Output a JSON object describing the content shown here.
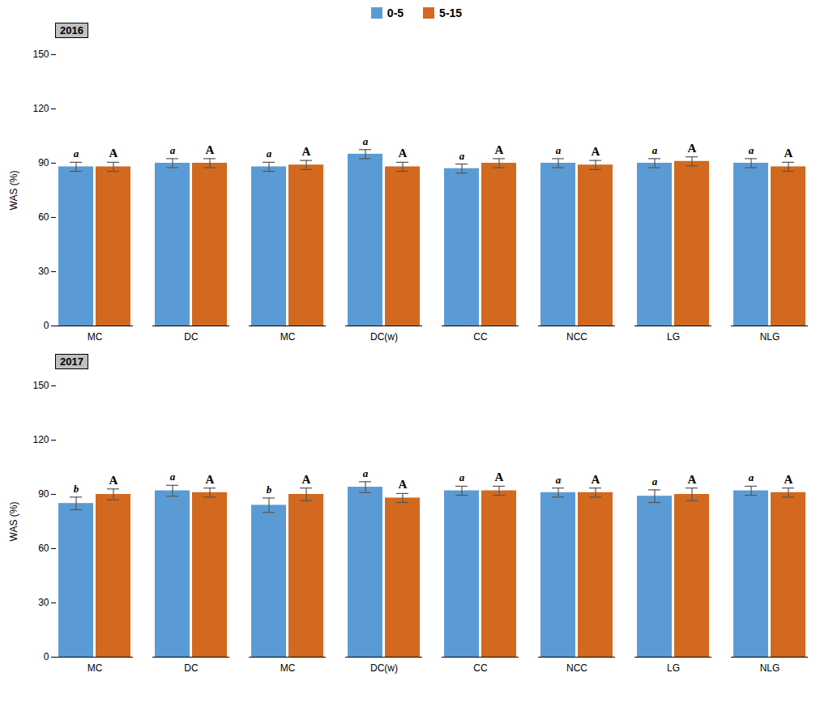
{
  "chart_data": [
    {
      "type": "bar",
      "title": "2016",
      "categories": [
        "MC",
        "DC",
        "MC",
        "DC(w)",
        "CC",
        "NCC",
        "LG",
        "NLG"
      ],
      "series": [
        {
          "name": "0-5",
          "color": "#5B9BD5",
          "values": [
            88,
            90,
            88,
            95,
            87,
            90,
            90,
            90
          ],
          "errors": [
            2.5,
            2.5,
            2.5,
            2.5,
            2.5,
            2.5,
            2.5,
            2.5
          ],
          "letters": [
            "a",
            "a",
            "a",
            "a",
            "a",
            "a",
            "a",
            "a"
          ]
        },
        {
          "name": "5-15",
          "color": "#D2691E",
          "values": [
            88,
            90,
            89,
            88,
            90,
            89,
            91,
            88
          ],
          "errors": [
            2.5,
            2.5,
            2.5,
            2.5,
            2.5,
            2.5,
            2.5,
            2.5
          ],
          "letters": [
            "A",
            "A",
            "A",
            "A",
            "A",
            "A",
            "A",
            "A"
          ]
        }
      ],
      "ylabel": "WAS (%)",
      "ylim": [
        0,
        150
      ],
      "yticks": [
        0,
        30,
        60,
        90,
        120,
        150
      ],
      "grid": false,
      "legend": "top"
    },
    {
      "type": "bar",
      "title": "2017",
      "categories": [
        "MC",
        "DC",
        "MC",
        "DC(w)",
        "CC",
        "NCC",
        "LG",
        "NLG"
      ],
      "series": [
        {
          "name": "0-5",
          "color": "#5B9BD5",
          "values": [
            85,
            92,
            84,
            94,
            92,
            91,
            89,
            92
          ],
          "errors": [
            3.5,
            3.0,
            4.0,
            3.0,
            2.5,
            2.5,
            3.5,
            2.5
          ],
          "letters": [
            "b",
            "a",
            "b",
            "a",
            "a",
            "a",
            "a",
            "a"
          ]
        },
        {
          "name": "5-15",
          "color": "#D2691E",
          "values": [
            90,
            91,
            90,
            88,
            92,
            91,
            90,
            91
          ],
          "errors": [
            3.0,
            2.5,
            3.5,
            2.5,
            2.5,
            2.5,
            3.5,
            2.5
          ],
          "letters": [
            "A",
            "A",
            "A",
            "A",
            "A",
            "A",
            "A",
            "A"
          ]
        }
      ],
      "ylabel": "WAS (%)",
      "ylim": [
        0,
        150
      ],
      "yticks": [
        0,
        30,
        60,
        90,
        120,
        150
      ],
      "grid": false
    }
  ]
}
